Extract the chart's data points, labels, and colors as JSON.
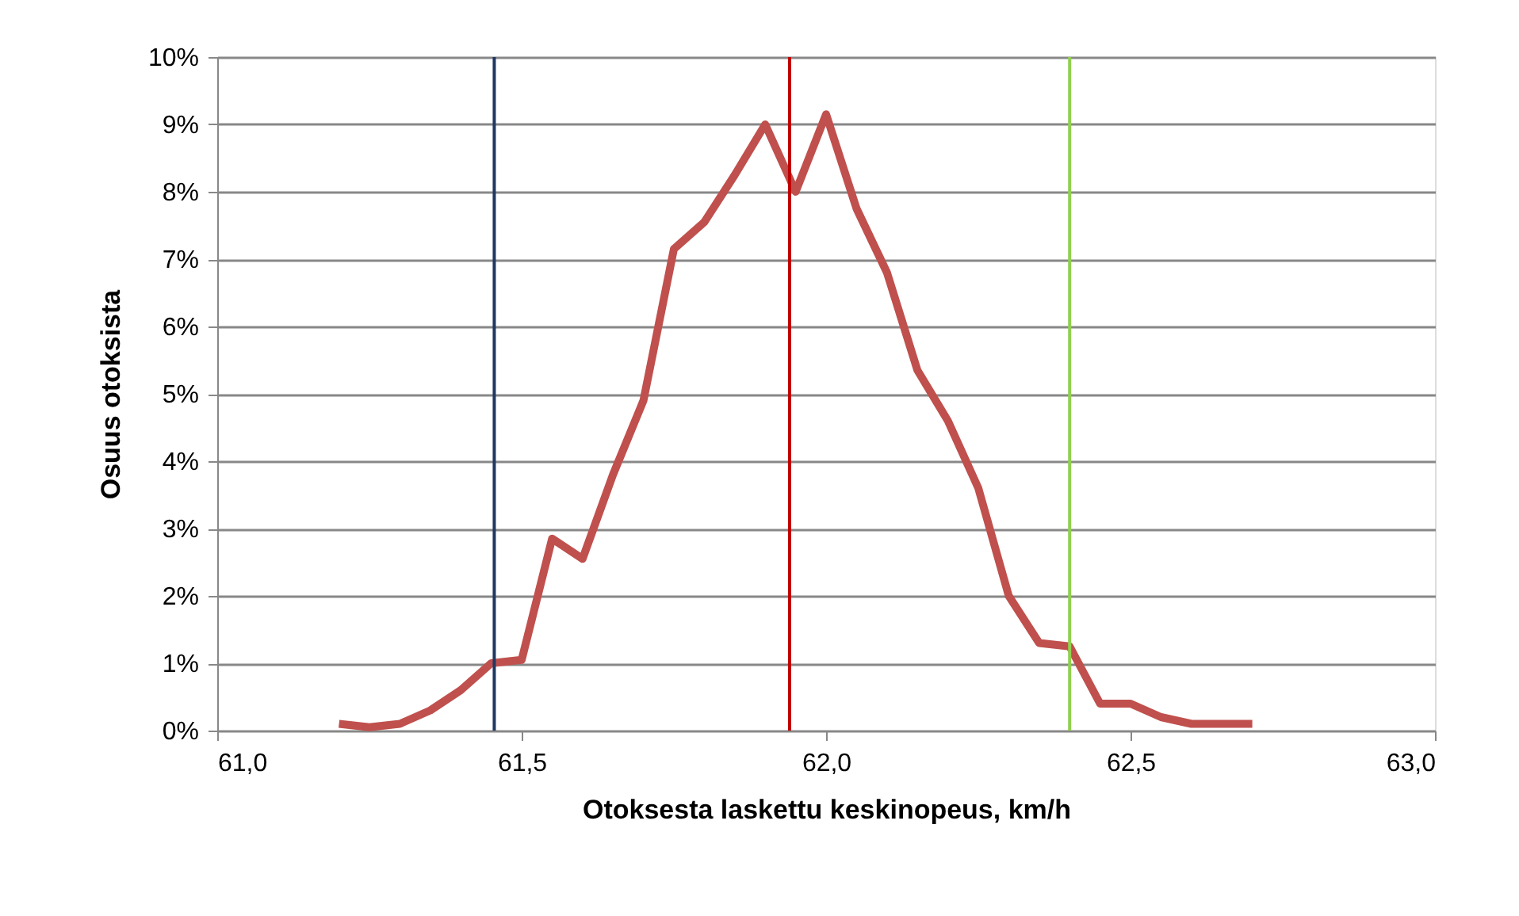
{
  "chart_data": {
    "type": "line",
    "xlabel": "Otoksesta laskettu keskinopeus, km/h",
    "ylabel": "Osuus otoksista",
    "x": [
      61.2,
      61.25,
      61.3,
      61.35,
      61.4,
      61.45,
      61.5,
      61.55,
      61.6,
      61.65,
      61.7,
      61.75,
      61.8,
      61.85,
      61.9,
      61.95,
      62.0,
      62.05,
      62.1,
      62.15,
      62.2,
      62.25,
      62.3,
      62.35,
      62.4,
      62.45,
      62.5,
      62.55,
      62.6,
      62.65,
      62.7
    ],
    "series": [
      {
        "color": "#c0504d",
        "values": [
          0.1,
          0.05,
          0.1,
          0.3,
          0.6,
          1.0,
          1.05,
          2.85,
          2.55,
          3.8,
          4.9,
          7.15,
          7.55,
          8.25,
          9.0,
          8.0,
          9.15,
          7.75,
          6.8,
          5.35,
          4.6,
          3.6,
          2.0,
          1.3,
          1.25,
          0.4,
          0.4,
          0.2,
          0.1,
          0.1,
          0.1
        ]
      }
    ],
    "xlim": [
      61.0,
      63.0
    ],
    "xticks": [
      {
        "value": 61.0,
        "label": "61,0"
      },
      {
        "value": 61.5,
        "label": "61,5"
      },
      {
        "value": 62.0,
        "label": "62,0"
      },
      {
        "value": 62.5,
        "label": "62,5"
      },
      {
        "value": 63.0,
        "label": "63,0"
      }
    ],
    "ylim": [
      0,
      10
    ],
    "yticks": [
      {
        "value": 0,
        "label": "0%"
      },
      {
        "value": 1,
        "label": "1%"
      },
      {
        "value": 2,
        "label": "2%"
      },
      {
        "value": 3,
        "label": "3%"
      },
      {
        "value": 4,
        "label": "4%"
      },
      {
        "value": 5,
        "label": "5%"
      },
      {
        "value": 6,
        "label": "6%"
      },
      {
        "value": 7,
        "label": "7%"
      },
      {
        "value": 8,
        "label": "8%"
      },
      {
        "value": 9,
        "label": "9%"
      },
      {
        "value": 10,
        "label": "10%"
      }
    ],
    "ref_lines": [
      {
        "axis": "x",
        "value": 61.455,
        "color": "#1f3864"
      },
      {
        "axis": "x",
        "value": 61.94,
        "color": "#c00000"
      },
      {
        "axis": "x",
        "value": 62.4,
        "color": "#92d050"
      }
    ],
    "grid": "y",
    "marker": "none",
    "line_style": "solid"
  }
}
